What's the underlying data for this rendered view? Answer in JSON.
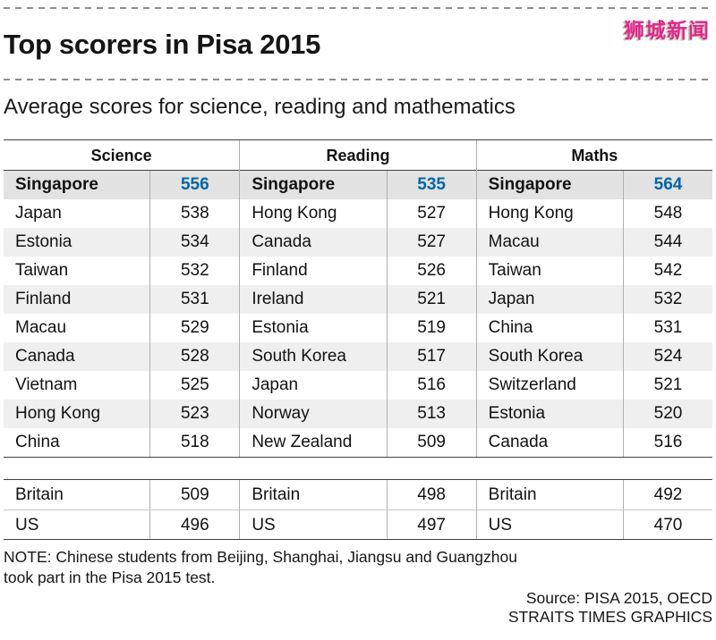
{
  "watermark": "狮城新闻",
  "header": {
    "title": "Top scorers in Pisa 2015",
    "subtitle": "Average scores for science, reading and mathematics"
  },
  "chart_data": {
    "type": "table",
    "title": "Top scorers in Pisa 2015",
    "subtitle": "Average scores for science, reading and mathematics",
    "highlight_country": "Singapore",
    "columns": [
      {
        "header": "Science",
        "rows": [
          [
            "Singapore",
            556
          ],
          [
            "Japan",
            538
          ],
          [
            "Estonia",
            534
          ],
          [
            "Taiwan",
            532
          ],
          [
            "Finland",
            531
          ],
          [
            "Macau",
            529
          ],
          [
            "Canada",
            528
          ],
          [
            "Vietnam",
            525
          ],
          [
            "Hong Kong",
            523
          ],
          [
            "China",
            518
          ]
        ],
        "extra": [
          [
            "Britain",
            509
          ],
          [
            "US",
            496
          ]
        ]
      },
      {
        "header": "Reading",
        "rows": [
          [
            "Singapore",
            535
          ],
          [
            "Hong Kong",
            527
          ],
          [
            "Canada",
            527
          ],
          [
            "Finland",
            526
          ],
          [
            "Ireland",
            521
          ],
          [
            "Estonia",
            519
          ],
          [
            "South Korea",
            517
          ],
          [
            "Japan",
            516
          ],
          [
            "Norway",
            513
          ],
          [
            "New Zealand",
            509
          ]
        ],
        "extra": [
          [
            "Britain",
            498
          ],
          [
            "US",
            497
          ]
        ]
      },
      {
        "header": "Maths",
        "rows": [
          [
            "Singapore",
            564
          ],
          [
            "Hong Kong",
            548
          ],
          [
            "Macau",
            544
          ],
          [
            "Taiwan",
            542
          ],
          [
            "Japan",
            532
          ],
          [
            "China",
            531
          ],
          [
            "South Korea",
            524
          ],
          [
            "Switzerland",
            521
          ],
          [
            "Estonia",
            520
          ],
          [
            "Canada",
            516
          ]
        ],
        "extra": [
          [
            "Britain",
            492
          ],
          [
            "US",
            470
          ]
        ]
      }
    ]
  },
  "footer": {
    "note_line1": "NOTE: Chinese students from Beijing, Shanghai, Jiangsu and Guangzhou",
    "note_line2": "took part in the Pisa 2015 test.",
    "source_line1": "Source: PISA 2015, OECD",
    "source_line2": "STRAITS TIMES GRAPHICS"
  },
  "colors": {
    "highlight_score_blue": "#0066a8",
    "watermark_pink": "#ee1f8e"
  }
}
